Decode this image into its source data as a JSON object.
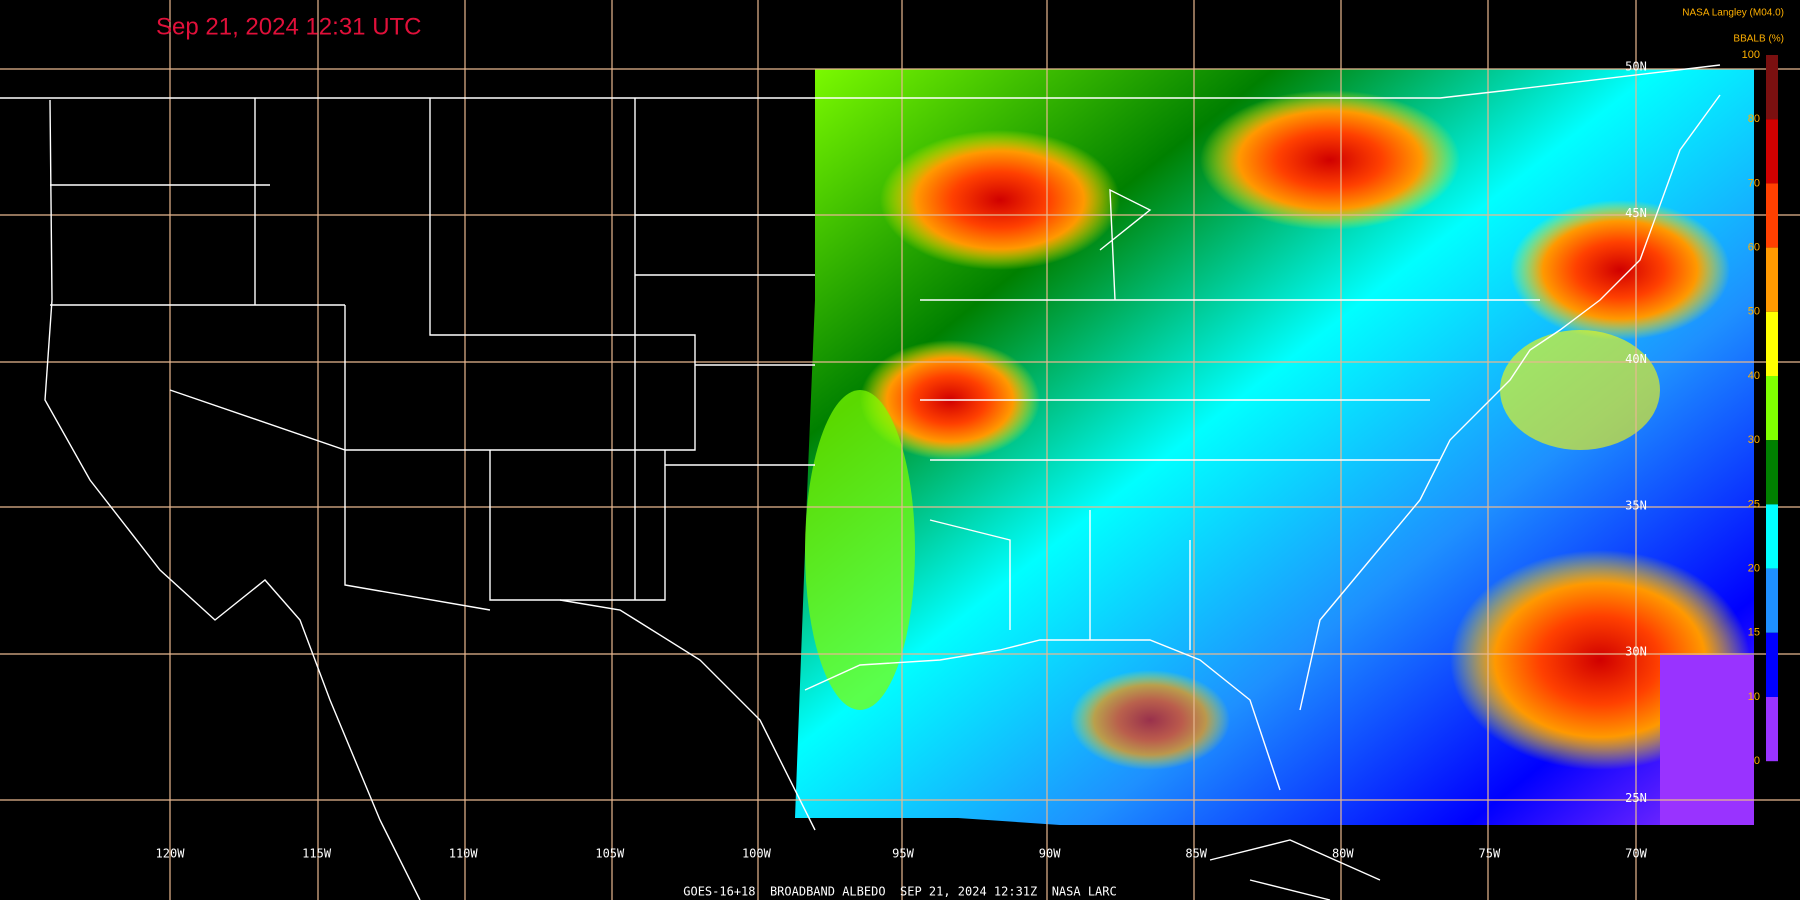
{
  "header": {
    "title": "Sep 21, 2024 12:31 UTC",
    "source": "NASA Langley (M04.0)"
  },
  "colorbar": {
    "label": "BBALB (%)",
    "ticks": [
      "100",
      "80",
      "70",
      "60",
      "50",
      "40",
      "30",
      "25",
      "20",
      "15",
      "10",
      "0"
    ],
    "colors": [
      "#7a1010",
      "#d00000",
      "#ff4000",
      "#ff9900",
      "#ffff00",
      "#80ff00",
      "#008000",
      "#00ffff",
      "#1e90ff",
      "#0000ff",
      "#9933ff"
    ]
  },
  "map": {
    "lon_labels": [
      "120W",
      "115W",
      "110W",
      "105W",
      "100W",
      "95W",
      "90W",
      "85W",
      "80W",
      "75W",
      "70W"
    ],
    "lat_labels": [
      "50N",
      "45N",
      "40N",
      "35N",
      "30N",
      "25N"
    ]
  },
  "footer": {
    "caption": "GOES-16+18  BROADBAND ALBEDO  SEP 21, 2024 12:31Z  NASA LARC"
  }
}
